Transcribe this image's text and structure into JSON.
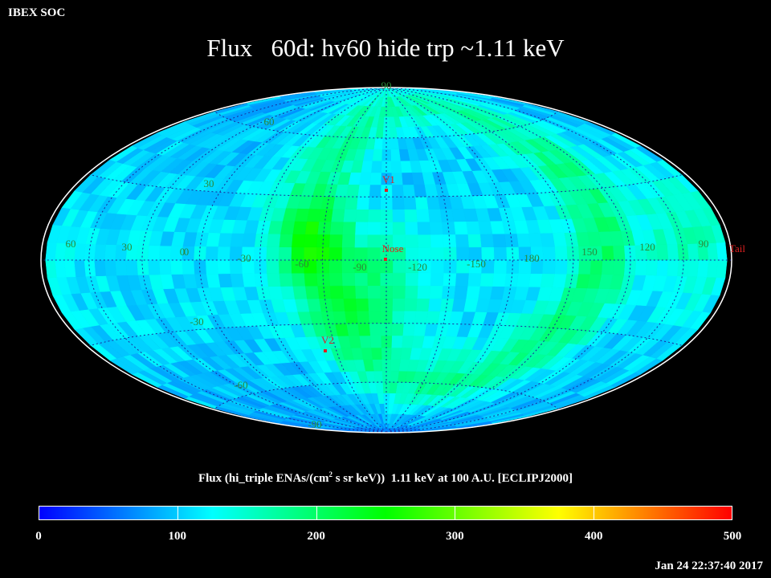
{
  "header": {
    "left_label": "IBEX SOC"
  },
  "title": "Flux   60d: hv60 hide trp ~1.11 keV",
  "map": {
    "projection": "hammer-aitoff",
    "frame": "ECLIPJ2000",
    "latitude_labels": [
      "60",
      "30",
      "0",
      "-30",
      "-60",
      "-90",
      "90"
    ],
    "longitude_labels": [
      "60",
      "30",
      "0",
      "-30",
      "-60",
      "-90",
      "-120",
      "-150",
      "180",
      "150",
      "120",
      "90"
    ],
    "markers": [
      {
        "label": "V1",
        "lon": -105,
        "lat": 35
      },
      {
        "label": "Nose",
        "lon": -105,
        "lat": 5
      },
      {
        "label": "V2",
        "lon": -70,
        "lat": -32
      },
      {
        "label": "Tail",
        "lon": 75,
        "lat": -5
      }
    ],
    "colors": {
      "grid": "#1a2a9a",
      "marker": "#e02020",
      "label": "#2a8a3a"
    }
  },
  "colorbar": {
    "title_pre": "Flux (hi_triple ENAs/(cm",
    "title_sup": "2",
    "title_post": " s sr keV))  1.11 keV at 100 A.U. [ECLIPJ2000]",
    "min": 0,
    "max": 500,
    "ticks": [
      "0",
      "100",
      "200",
      "300",
      "400",
      "500"
    ],
    "stops": [
      "#0000ff",
      "#00ffff",
      "#00ff00",
      "#ffff00",
      "#ff0000"
    ]
  },
  "timestamp": "Jan 24 22:37:40 2017"
}
